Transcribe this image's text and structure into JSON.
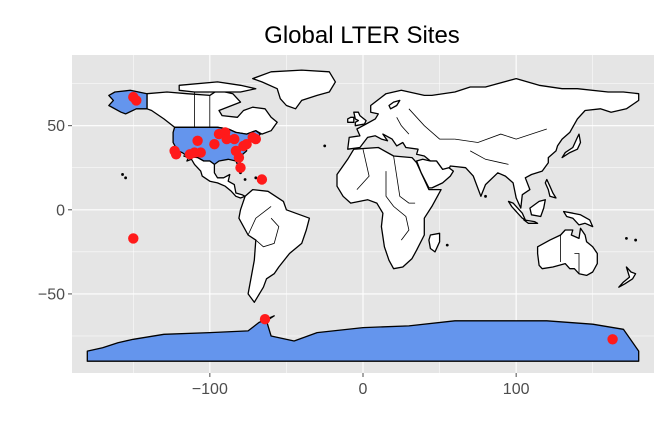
{
  "chart_data": {
    "type": "scatter",
    "title": "Global LTER Sites",
    "xlabel": "",
    "ylabel": "",
    "xlim": [
      -190,
      190
    ],
    "ylim": [
      -97,
      92
    ],
    "x_ticks": [
      -100,
      0,
      100
    ],
    "x_tick_labels": [
      "−100",
      "0",
      "100"
    ],
    "y_ticks": [
      -50,
      0,
      50
    ],
    "y_tick_labels": [
      "−50",
      "0",
      "50"
    ],
    "grid": true,
    "background_color": "#e5e5e5",
    "grid_color": "#ffffff",
    "land_color": "#ffffff",
    "highlight_color": "#6495ed",
    "highlighted_regions": [
      "United States",
      "Alaska",
      "Antarctica"
    ],
    "point_color": "#ff1a1a",
    "series": [
      {
        "points": [
          {
            "x": -150,
            "y": 67
          },
          {
            "x": -148,
            "y": 65
          },
          {
            "x": -123,
            "y": 35
          },
          {
            "x": -122,
            "y": 33
          },
          {
            "x": -113,
            "y": 33
          },
          {
            "x": -110,
            "y": 34
          },
          {
            "x": -108,
            "y": 41
          },
          {
            "x": -106,
            "y": 34
          },
          {
            "x": -97,
            "y": 39
          },
          {
            "x": -94,
            "y": 45
          },
          {
            "x": -90,
            "y": 46
          },
          {
            "x": -89,
            "y": 42
          },
          {
            "x": -84,
            "y": 42
          },
          {
            "x": -83,
            "y": 35
          },
          {
            "x": -81,
            "y": 31
          },
          {
            "x": -80,
            "y": 25
          },
          {
            "x": -78,
            "y": 38
          },
          {
            "x": -76,
            "y": 39
          },
          {
            "x": -72,
            "y": 43
          },
          {
            "x": -70,
            "y": 42
          },
          {
            "x": -66,
            "y": 18
          },
          {
            "x": -150,
            "y": -17
          },
          {
            "x": -64,
            "y": -65
          },
          {
            "x": 163,
            "y": -77
          }
        ]
      }
    ]
  }
}
